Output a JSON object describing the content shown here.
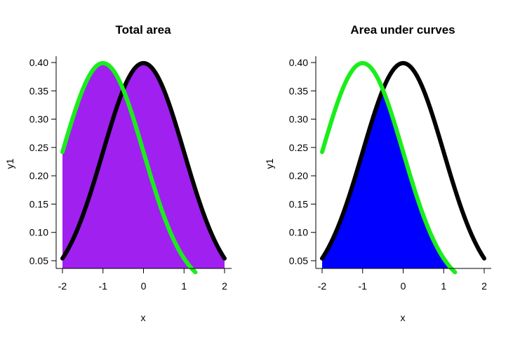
{
  "chart_data": [
    {
      "type": "area",
      "title": "Total area",
      "xlabel": "x",
      "ylabel": "y1",
      "xlim": [
        -2,
        2
      ],
      "ylim": [
        0.05,
        0.4
      ],
      "x_ticks": [
        "-2",
        "-1",
        "0",
        "1",
        "2"
      ],
      "y_ticks": [
        "0.05",
        "0.10",
        "0.15",
        "0.20",
        "0.25",
        "0.30",
        "0.35",
        "0.40"
      ],
      "grid": false,
      "fill": "union",
      "fill_color": "#a020f0",
      "series": [
        {
          "curve": "dnorm(x, mean=0, sd=1)",
          "mean": 0,
          "sd": 1,
          "x_range": [
            -2,
            2
          ],
          "color": "#000000"
        },
        {
          "curve": "dnorm(x, mean=-1, sd=1)",
          "mean": -1,
          "sd": 1,
          "x_range": [
            -2,
            2
          ],
          "color": "#1aee1a"
        }
      ]
    },
    {
      "type": "area",
      "title": "Area under curves",
      "xlabel": "x",
      "ylabel": "y1",
      "xlim": [
        -2,
        2
      ],
      "ylim": [
        0.05,
        0.4
      ],
      "x_ticks": [
        "-2",
        "-1",
        "0",
        "1",
        "2"
      ],
      "y_ticks": [
        "0.05",
        "0.10",
        "0.15",
        "0.20",
        "0.25",
        "0.30",
        "0.35",
        "0.40"
      ],
      "grid": false,
      "fill": "intersection",
      "fill_color": "#0000ff",
      "series": [
        {
          "curve": "dnorm(x, mean=0, sd=1)",
          "mean": 0,
          "sd": 1,
          "x_range": [
            -2,
            2
          ],
          "color": "#000000"
        },
        {
          "curve": "dnorm(x, mean=-1, sd=1)",
          "mean": -1,
          "sd": 1,
          "x_range": [
            -2,
            2
          ],
          "color": "#1aee1a"
        }
      ]
    }
  ]
}
